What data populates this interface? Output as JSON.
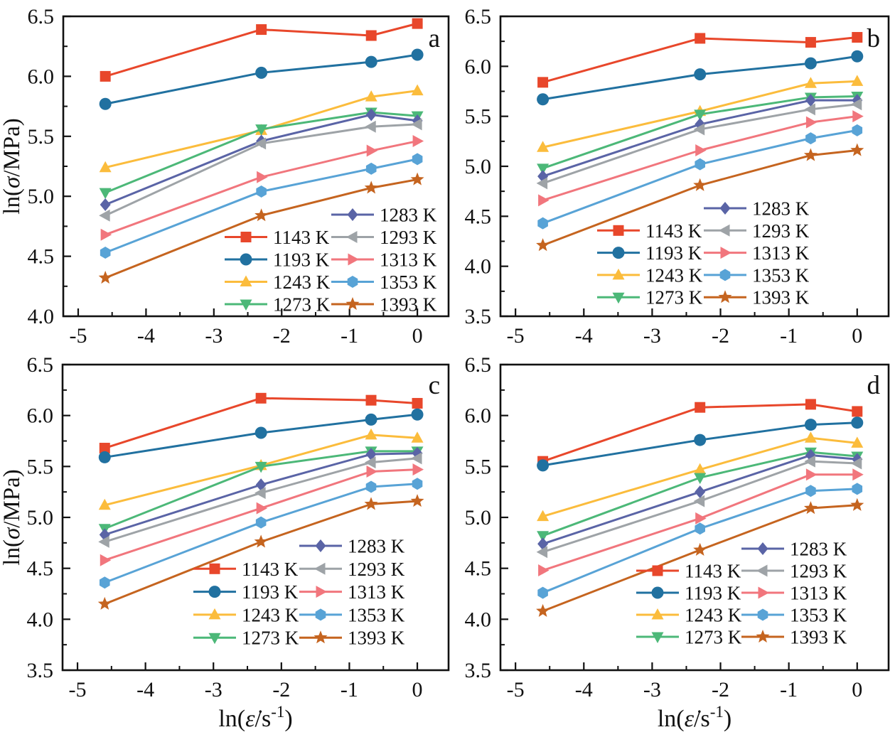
{
  "figure_name": "flow-stress-vs-strain-rate-grid",
  "series_style": [
    {
      "name": "1143 K",
      "color": "#e8472b",
      "marker": "square"
    },
    {
      "name": "1193 K",
      "color": "#2171a0",
      "marker": "circle"
    },
    {
      "name": "1243 K",
      "color": "#fbbc3c",
      "marker": "triangle-up"
    },
    {
      "name": "1273 K",
      "color": "#4cb878",
      "marker": "triangle-down"
    },
    {
      "name": "1283 K",
      "color": "#5a64a6",
      "marker": "diamond"
    },
    {
      "name": "1293 K",
      "color": "#9ea3a7",
      "marker": "triangle-left"
    },
    {
      "name": "1313 K",
      "color": "#f1767d",
      "marker": "triangle-right"
    },
    {
      "name": "1353 K",
      "color": "#58a3d6",
      "marker": "hexagon"
    },
    {
      "name": "1393 K",
      "color": "#c5641f",
      "marker": "star"
    }
  ],
  "axis_label_parts": {
    "x": {
      "pre": "ln(",
      "var": "ε̇",
      "mid": "/s",
      "sup": "-1",
      "post": ")"
    },
    "y": {
      "pre": "ln(",
      "var": "σ",
      "post": "/MPa)"
    }
  },
  "chart_data": [
    {
      "type": "line",
      "panel_label": "a",
      "xlabel": "ln(ε̇/s⁻¹)",
      "ylabel": "ln(σ/MPa)",
      "show_xlabel": false,
      "show_ylabel": true,
      "x": [
        -4.6,
        -2.3,
        -0.68,
        0
      ],
      "xlim": [
        -5.22,
        0.46
      ],
      "xticks": [
        -5,
        -4,
        -3,
        -2,
        -1,
        0
      ],
      "ylim": [
        4.0,
        6.5
      ],
      "yticks": [
        4.0,
        4.5,
        5.0,
        5.5,
        6.0,
        6.5
      ],
      "legend_position": "inside-bottom-right",
      "series": [
        {
          "name": "1143 K",
          "values": [
            6.0,
            6.39,
            6.34,
            6.44
          ]
        },
        {
          "name": "1193 K",
          "values": [
            5.77,
            6.03,
            6.12,
            6.18
          ]
        },
        {
          "name": "1243 K",
          "values": [
            5.24,
            5.55,
            5.83,
            5.88
          ]
        },
        {
          "name": "1273 K",
          "values": [
            5.03,
            5.56,
            5.7,
            5.67
          ]
        },
        {
          "name": "1283 K",
          "values": [
            4.93,
            5.46,
            5.68,
            5.63
          ]
        },
        {
          "name": "1293 K",
          "values": [
            4.84,
            5.44,
            5.58,
            5.6
          ]
        },
        {
          "name": "1313 K",
          "values": [
            4.68,
            5.16,
            5.38,
            5.46
          ]
        },
        {
          "name": "1353 K",
          "values": [
            4.53,
            5.04,
            5.23,
            5.31
          ]
        },
        {
          "name": "1393 K",
          "values": [
            4.32,
            4.84,
            5.07,
            5.14
          ]
        }
      ]
    },
    {
      "type": "line",
      "panel_label": "b",
      "xlabel": "ln(ε̇/s⁻¹)",
      "ylabel": "ln(σ/MPa)",
      "show_xlabel": false,
      "show_ylabel": false,
      "x": [
        -4.6,
        -2.3,
        -0.68,
        0
      ],
      "xlim": [
        -5.22,
        0.46
      ],
      "xticks": [
        -5,
        -4,
        -3,
        -2,
        -1,
        0
      ],
      "ylim": [
        3.5,
        6.5
      ],
      "yticks": [
        3.5,
        4.0,
        4.5,
        5.0,
        5.5,
        6.0,
        6.5
      ],
      "legend_position": "inside-bottom-right",
      "series": [
        {
          "name": "1143 K",
          "values": [
            5.84,
            6.28,
            6.24,
            6.29
          ]
        },
        {
          "name": "1193 K",
          "values": [
            5.67,
            5.92,
            6.03,
            6.1
          ]
        },
        {
          "name": "1243 K",
          "values": [
            5.19,
            5.55,
            5.83,
            5.85
          ]
        },
        {
          "name": "1273 K",
          "values": [
            4.98,
            5.52,
            5.69,
            5.7
          ]
        },
        {
          "name": "1283 K",
          "values": [
            4.9,
            5.42,
            5.66,
            5.66
          ]
        },
        {
          "name": "1293 K",
          "values": [
            4.83,
            5.37,
            5.57,
            5.62
          ]
        },
        {
          "name": "1313 K",
          "values": [
            4.66,
            5.16,
            5.44,
            5.5
          ]
        },
        {
          "name": "1353 K",
          "values": [
            4.43,
            5.02,
            5.28,
            5.36
          ]
        },
        {
          "name": "1393 K",
          "values": [
            4.21,
            4.81,
            5.11,
            5.16
          ]
        }
      ]
    },
    {
      "type": "line",
      "panel_label": "c",
      "xlabel": "ln(ε̇/s⁻¹)",
      "ylabel": "ln(σ/MPa)",
      "show_xlabel": true,
      "show_ylabel": true,
      "x": [
        -4.6,
        -2.3,
        -0.68,
        0
      ],
      "xlim": [
        -5.22,
        0.46
      ],
      "xticks": [
        -5,
        -4,
        -3,
        -2,
        -1,
        0
      ],
      "ylim": [
        3.5,
        6.5
      ],
      "yticks": [
        3.5,
        4.0,
        4.5,
        5.0,
        5.5,
        6.0,
        6.5
      ],
      "legend_position": "inside-bottom-right",
      "series": [
        {
          "name": "1143 K",
          "values": [
            5.68,
            6.17,
            6.15,
            6.12
          ]
        },
        {
          "name": "1193 K",
          "values": [
            5.59,
            5.83,
            5.96,
            6.01
          ]
        },
        {
          "name": "1243 K",
          "values": [
            5.12,
            5.51,
            5.81,
            5.78
          ]
        },
        {
          "name": "1273 K",
          "values": [
            4.89,
            5.5,
            5.65,
            5.65
          ]
        },
        {
          "name": "1283 K",
          "values": [
            4.83,
            5.32,
            5.62,
            5.63
          ]
        },
        {
          "name": "1293 K",
          "values": [
            4.76,
            5.24,
            5.54,
            5.58
          ]
        },
        {
          "name": "1313 K",
          "values": [
            4.58,
            5.09,
            5.45,
            5.47
          ]
        },
        {
          "name": "1353 K",
          "values": [
            4.36,
            4.95,
            5.3,
            5.33
          ]
        },
        {
          "name": "1393 K",
          "values": [
            4.15,
            4.76,
            5.13,
            5.16
          ]
        }
      ]
    },
    {
      "type": "line",
      "panel_label": "d",
      "xlabel": "ln(ε̇/s⁻¹)",
      "ylabel": "ln(σ/MPa)",
      "show_xlabel": true,
      "show_ylabel": false,
      "x": [
        -4.6,
        -2.3,
        -0.68,
        0
      ],
      "xlim": [
        -5.22,
        0.46
      ],
      "xticks": [
        -5,
        -4,
        -3,
        -2,
        -1,
        0
      ],
      "ylim": [
        3.5,
        6.5
      ],
      "yticks": [
        3.5,
        4.0,
        4.5,
        5.0,
        5.5,
        6.0,
        6.5
      ],
      "legend_position": "inside-bottom-right",
      "series": [
        {
          "name": "1143 K",
          "values": [
            5.55,
            6.08,
            6.11,
            6.04
          ]
        },
        {
          "name": "1193 K",
          "values": [
            5.51,
            5.76,
            5.91,
            5.93
          ]
        },
        {
          "name": "1243 K",
          "values": [
            5.01,
            5.47,
            5.78,
            5.73
          ]
        },
        {
          "name": "1273 K",
          "values": [
            4.82,
            5.39,
            5.64,
            5.6
          ]
        },
        {
          "name": "1283 K",
          "values": [
            4.74,
            5.25,
            5.61,
            5.57
          ]
        },
        {
          "name": "1293 K",
          "values": [
            4.66,
            5.16,
            5.55,
            5.53
          ]
        },
        {
          "name": "1313 K",
          "values": [
            4.48,
            4.99,
            5.42,
            5.42
          ]
        },
        {
          "name": "1353 K",
          "values": [
            4.26,
            4.89,
            5.26,
            5.28
          ]
        },
        {
          "name": "1393 K",
          "values": [
            4.08,
            4.68,
            5.09,
            5.12
          ]
        }
      ]
    }
  ]
}
